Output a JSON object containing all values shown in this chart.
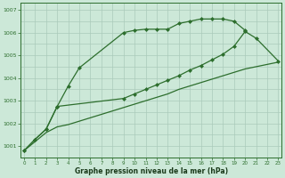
{
  "title": "Graphe pression niveau de la mer (hPa)",
  "background_color": "#cce8d8",
  "grid_color": "#aacaba",
  "line_color": "#2d6e2d",
  "ylim": [
    1000.5,
    1007.3
  ],
  "yticks": [
    1001,
    1002,
    1003,
    1004,
    1005,
    1006,
    1007
  ],
  "xlim": [
    -0.3,
    23.3
  ],
  "series1_x": [
    0,
    1,
    2,
    3,
    4,
    5,
    9,
    10,
    11,
    12,
    13,
    14,
    15,
    16,
    17,
    18,
    19,
    20
  ],
  "series1_y": [
    1000.8,
    1001.3,
    1001.75,
    1002.75,
    1003.65,
    1004.45,
    1006.0,
    1006.1,
    1006.15,
    1006.15,
    1006.15,
    1006.4,
    1006.5,
    1006.6,
    1006.6,
    1006.6,
    1006.5,
    1006.1
  ],
  "series2_x": [
    0,
    1,
    2,
    3,
    9,
    10,
    11,
    12,
    13,
    14,
    15,
    16,
    17,
    18,
    19,
    20,
    21,
    23
  ],
  "series2_y": [
    1000.8,
    1001.3,
    1001.75,
    1002.75,
    1003.1,
    1003.3,
    1003.5,
    1003.7,
    1003.9,
    1004.1,
    1004.35,
    1004.55,
    1004.8,
    1005.05,
    1005.4,
    1006.05,
    1005.75,
    1004.75
  ],
  "series3_x": [
    0,
    1,
    2,
    3,
    4,
    5,
    6,
    7,
    8,
    9,
    10,
    11,
    12,
    13,
    14,
    15,
    16,
    17,
    18,
    19,
    20,
    21,
    22,
    23
  ],
  "series3_y": [
    1000.8,
    1001.2,
    1001.6,
    1001.85,
    1001.95,
    1002.1,
    1002.25,
    1002.4,
    1002.55,
    1002.7,
    1002.85,
    1003.0,
    1003.15,
    1003.3,
    1003.5,
    1003.65,
    1003.8,
    1003.95,
    1004.1,
    1004.25,
    1004.4,
    1004.5,
    1004.6,
    1004.7
  ],
  "markersize": 2.5
}
